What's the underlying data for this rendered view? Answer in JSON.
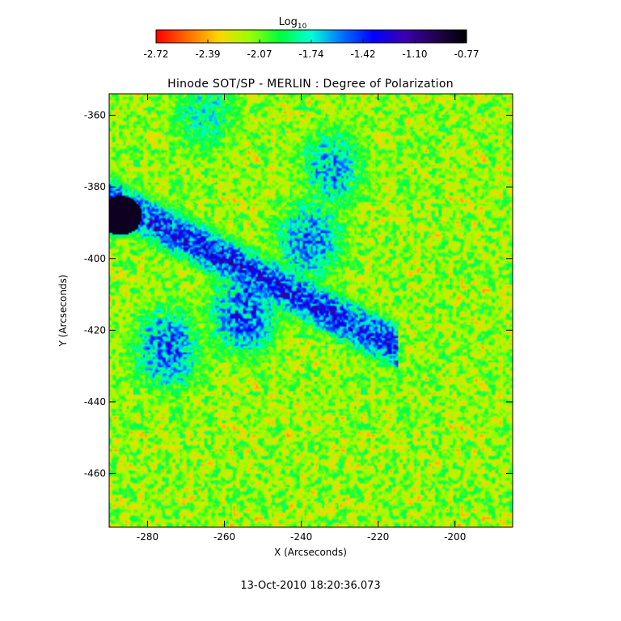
{
  "colorbar": {
    "label_main": "Log",
    "label_sub": "10",
    "tick_labels": [
      "-2.72",
      "-2.39",
      "-2.07",
      "-1.74",
      "-1.42",
      "-1.10",
      "-0.77"
    ],
    "colors": [
      "#ff0000",
      "#ff6a00",
      "#ffd400",
      "#9cff00",
      "#00ff3c",
      "#00ffd8",
      "#0070ff",
      "#0000ff",
      "#3a00b0",
      "#220050",
      "#000000"
    ],
    "range": [
      -2.72,
      -0.77
    ]
  },
  "chart_data": {
    "type": "heatmap",
    "title": "Hinode SOT/SP - MERLIN : Degree of Polarization",
    "xlabel": "X (Arcseconds)",
    "ylabel": "Y (Arcseconds)",
    "xlim": [
      -290,
      -185
    ],
    "ylim": [
      -475,
      -354
    ],
    "x_ticks": [
      -280,
      -260,
      -240,
      -220,
      -200
    ],
    "y_ticks": [
      -360,
      -380,
      -400,
      -420,
      -440,
      -460
    ],
    "x_tick_labels": [
      "-280",
      "-260",
      "-240",
      "-220",
      "-200"
    ],
    "y_tick_labels": [
      "-360",
      "-380",
      "-400",
      "-420",
      "-440",
      "-460"
    ],
    "value_range": [
      -2.72,
      -0.77
    ],
    "features": [
      {
        "name": "sunspot",
        "x": -287,
        "y": -388,
        "level": -0.85
      },
      {
        "name": "network-lane",
        "x": -255,
        "y": -415,
        "level": -1.25
      },
      {
        "name": "network-lane",
        "x": -238,
        "y": -395,
        "level": -1.35
      },
      {
        "name": "network-lane",
        "x": -232,
        "y": -375,
        "level": -1.45
      },
      {
        "name": "network-lane",
        "x": -275,
        "y": -425,
        "level": -1.3
      },
      {
        "name": "network-lane",
        "x": -265,
        "y": -360,
        "level": -1.6
      }
    ]
  },
  "timestamp": "13-Oct-2010 18:20:36.073"
}
